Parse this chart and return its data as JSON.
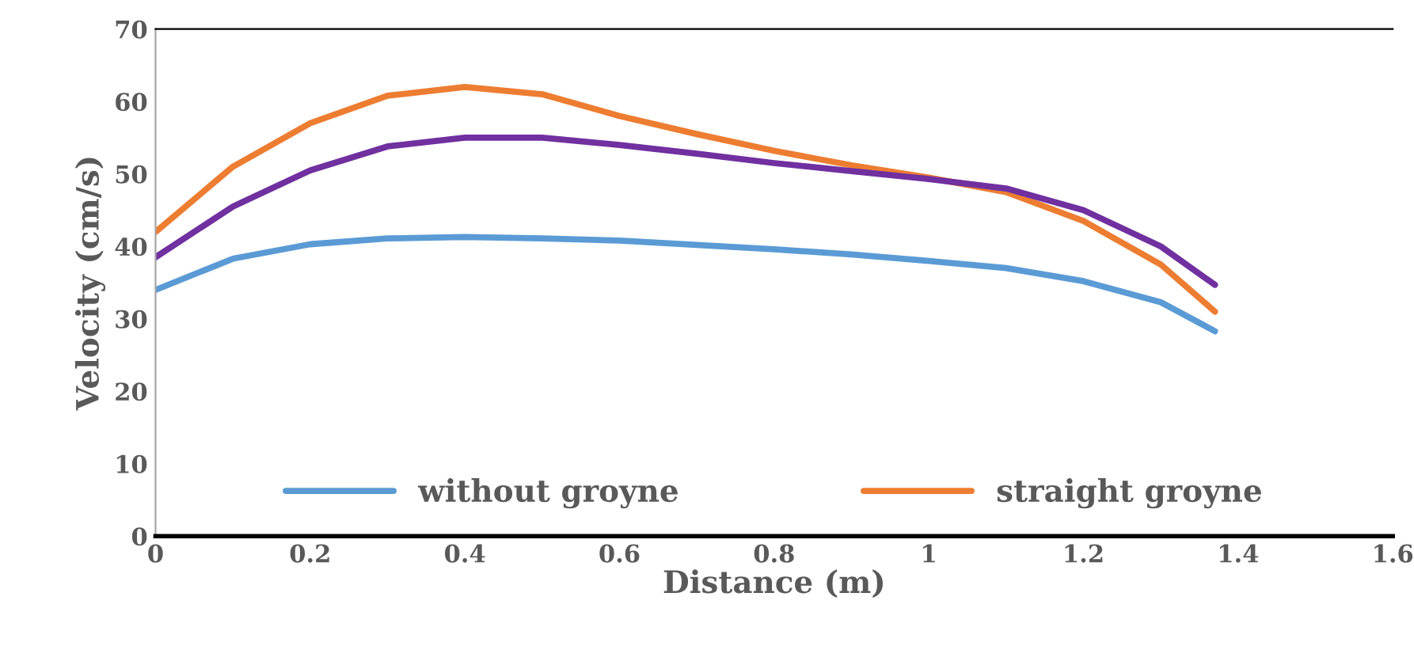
{
  "chart_data": {
    "type": "line",
    "xlabel": "Distance (m)",
    "ylabel": "Velocity (cm/s)",
    "xlim": [
      0,
      1.6
    ],
    "xticks": [
      0,
      0.2,
      0.4,
      0.6,
      0.8,
      1,
      1.2,
      1.4,
      1.6
    ],
    "ylim": [
      0,
      70
    ],
    "yticks": [
      0,
      10,
      20,
      30,
      40,
      50,
      60,
      70
    ],
    "x": [
      0,
      0.1,
      0.2,
      0.3,
      0.4,
      0.5,
      0.6,
      0.7,
      0.8,
      0.9,
      1.0,
      1.1,
      1.2,
      1.3,
      1.37
    ],
    "series": [
      {
        "name": "without groyne",
        "color": "#5b9bd5",
        "values": [
          34,
          38.3,
          40.3,
          41.1,
          41.3,
          41.1,
          40.8,
          40.2,
          39.6,
          38.9,
          38,
          37,
          35.2,
          32.3,
          28.3
        ]
      },
      {
        "name": "straight groyne",
        "color": "#ed7d31",
        "values": [
          42,
          51,
          57,
          60.8,
          62,
          61,
          58,
          55.5,
          53.2,
          51.2,
          49.5,
          47.5,
          43.5,
          37.5,
          31
        ]
      },
      {
        "color": "#7030a0",
        "values": [
          38.5,
          45.5,
          50.5,
          53.8,
          55,
          55,
          54,
          52.8,
          51.5,
          50.4,
          49.3,
          48,
          45,
          40,
          34.7
        ]
      }
    ],
    "grid": false,
    "legend": "bottom",
    "line_style": "solid",
    "marker": "none"
  }
}
